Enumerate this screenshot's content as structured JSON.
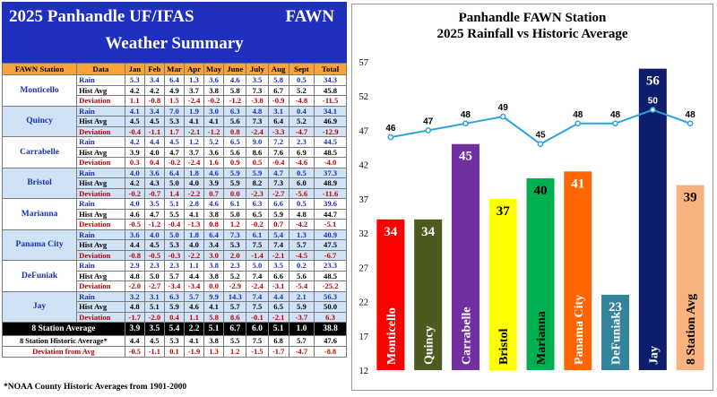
{
  "table": {
    "title_line1": "2025 Panhandle UF/IFAS",
    "title_fawn": "FAWN",
    "title_line2": "Weather Summary",
    "headers": [
      "FAWN Station",
      "Data",
      "Jan",
      "Feb",
      "Mar",
      "Apr",
      "May",
      "June",
      "July",
      "Aug",
      "Sept",
      "Total"
    ],
    "row_labels": [
      "Rain",
      "Hist Avg",
      "Deviation"
    ],
    "stations": [
      {
        "name": "Monticello",
        "rain": [
          "5.3",
          "3.4",
          "6.4",
          "1.3",
          "3.6",
          "4.6",
          "3.5",
          "5.8",
          "0.5",
          "34.3"
        ],
        "hist": [
          "4.2",
          "4.2",
          "4.9",
          "3.7",
          "3.8",
          "5.8",
          "7.3",
          "6.7",
          "5.2",
          "45.8"
        ],
        "dev": [
          "1.1",
          "-0.8",
          "1.5",
          "-2.4",
          "-0.2",
          "-1.2",
          "-3.8",
          "-0.9",
          "-4.8",
          "-11.5"
        ]
      },
      {
        "name": "Quincy",
        "rain": [
          "4.1",
          "3.4",
          "7.0",
          "1.9",
          "3.0",
          "6.3",
          "4.8",
          "3.1",
          "0.4",
          "34.1"
        ],
        "hist": [
          "4.5",
          "4.5",
          "5.3",
          "4.1",
          "4.1",
          "5.6",
          "7.3",
          "6.4",
          "5.2",
          "46.9"
        ],
        "dev": [
          "-0.4",
          "-1.1",
          "1.7",
          "-2.1",
          "-1.2",
          "0.8",
          "-2.4",
          "-3.3",
          "-4.7",
          "-12.9"
        ]
      },
      {
        "name": "Carrabelle",
        "rain": [
          "4.2",
          "4.4",
          "4.5",
          "1.2",
          "5.2",
          "6.5",
          "9.0",
          "7.2",
          "2.3",
          "44.5"
        ],
        "hist": [
          "3.9",
          "4.0",
          "4.7",
          "3.7",
          "3.6",
          "5.6",
          "8.6",
          "7.6",
          "6.9",
          "48.5"
        ],
        "dev": [
          "0.3",
          "0.4",
          "-0.2",
          "-2.4",
          "1.6",
          "0.9",
          "0.5",
          "-0.4",
          "-4.6",
          "-4.0"
        ]
      },
      {
        "name": "Bristol",
        "rain": [
          "4.0",
          "3.6",
          "6.4",
          "1.8",
          "4.6",
          "5.9",
          "5.9",
          "4.7",
          "0.5",
          "37.3"
        ],
        "hist": [
          "4.2",
          "4.3",
          "5.0",
          "4.0",
          "3.9",
          "5.9",
          "8.2",
          "7.3",
          "6.0",
          "48.9"
        ],
        "dev": [
          "-0.2",
          "-0.7",
          "1.4",
          "-2.2",
          "0.7",
          "0.0",
          "-2.3",
          "-2.7",
          "-5.6",
          "-11.6"
        ]
      },
      {
        "name": "Marianna",
        "rain": [
          "4.0",
          "3.5",
          "5.1",
          "2.8",
          "4.6",
          "6.1",
          "6.3",
          "6.6",
          "0.5",
          "39.6"
        ],
        "hist": [
          "4.6",
          "4.7",
          "5.5",
          "4.1",
          "3.8",
          "5.0",
          "6.5",
          "5.9",
          "4.8",
          "44.7"
        ],
        "dev": [
          "-0.5",
          "-1.2",
          "-0.4",
          "-1.3",
          "0.8",
          "1.2",
          "-0.2",
          "0.7",
          "-4.2",
          "-5.1"
        ]
      },
      {
        "name": "Panama City",
        "rain": [
          "3.6",
          "4.0",
          "5.0",
          "1.8",
          "6.4",
          "7.3",
          "6.1",
          "5.4",
          "1.3",
          "40.9"
        ],
        "hist": [
          "4.4",
          "4.5",
          "5.3",
          "4.0",
          "3.4",
          "5.3",
          "7.5",
          "7.4",
          "5.7",
          "47.5"
        ],
        "dev": [
          "-0.8",
          "-0.5",
          "-0.3",
          "-2.2",
          "3.0",
          "2.0",
          "-1.4",
          "-2.1",
          "-4.5",
          "-6.7"
        ]
      },
      {
        "name": "DeFuniak",
        "rain": [
          "2.9",
          "2.3",
          "2.3",
          "1.1",
          "3.8",
          "2.3",
          "5.0",
          "3.5",
          "0.2",
          "23.3"
        ],
        "hist": [
          "4.8",
          "5.0",
          "5.7",
          "4.4",
          "3.8",
          "5.2",
          "7.4",
          "6.6",
          "5.6",
          "48.5"
        ],
        "dev": [
          "-2.0",
          "-2.7",
          "-3.4",
          "-3.4",
          "0.0",
          "-2.9",
          "-2.4",
          "-3.1",
          "-5.4",
          "-25.2"
        ]
      },
      {
        "name": "Jay",
        "rain": [
          "3.2",
          "3.1",
          "6.3",
          "5.7",
          "9.9",
          "14.3",
          "7.4",
          "4.4",
          "2.1",
          "56.3"
        ],
        "hist": [
          "4.8",
          "5.1",
          "5.9",
          "4.6",
          "4.1",
          "5.7",
          "7.5",
          "6.5",
          "5.9",
          "50.0"
        ],
        "dev": [
          "-1.7",
          "-2.0",
          "0.4",
          "1.1",
          "5.8",
          "8.6",
          "-0.1",
          "-2.1",
          "-3.7",
          "6.3"
        ]
      }
    ],
    "avg8_label": "8 Station Average",
    "avg8": [
      "3.9",
      "3.5",
      "5.4",
      "2.2",
      "5.1",
      "6.7",
      "6.0",
      "5.1",
      "1.0",
      "38.8"
    ],
    "hist8_label": "8 Station Historic Average*",
    "hist8": [
      "4.4",
      "4.5",
      "5.3",
      "4.1",
      "3.8",
      "5.5",
      "7.5",
      "6.8",
      "5.7",
      "47.6"
    ],
    "dev8_label": "Deviation from Avg",
    "dev8": [
      "-0.5",
      "-1.1",
      "0.1",
      "-1.9",
      "1.3",
      "1.2",
      "-1.5",
      "-1.7",
      "-4.7",
      "-8.8"
    ],
    "footnote": "*NOAA County Historic Averages from 1901-2000"
  },
  "chart_data": {
    "type": "bar",
    "title": "Panhandle FAWN Station\n2025 Rainfall vs Historic Average",
    "title_line1": "Panhandle FAWN Station",
    "title_line2": "2025 Rainfall vs Historic Average",
    "categories": [
      "Monticello",
      "Quincy",
      "Carrabelle",
      "Bristol",
      "Marianna",
      "Panama City",
      "DeFuniak",
      "Jay",
      "8 Station Avg"
    ],
    "values": [
      34,
      34,
      45,
      37,
      40,
      41,
      23,
      56,
      39
    ],
    "value_labels": [
      "34",
      "34",
      "45",
      "37",
      "40",
      "41",
      "23",
      "56",
      "39"
    ],
    "line_series": [
      46,
      47,
      48,
      49,
      45,
      48,
      48,
      50,
      48
    ],
    "line_labels": [
      "46",
      "47",
      "48",
      "49",
      "45",
      "48",
      "48",
      "50",
      "48"
    ],
    "bar_colors": [
      "#ff0000",
      "#4b5a1e",
      "#7030a0",
      "#ffff00",
      "#00b050",
      "#ff6600",
      "#31849b",
      "#0b1d6b",
      "#f7b27e"
    ],
    "label_colors": [
      "#ffffff",
      "#ffffff",
      "#ffffff",
      "#000000",
      "#000000",
      "#ffffff",
      "#ffffff",
      "#ffffff",
      "#000000"
    ],
    "line_color": "#29a3e0",
    "ylim": [
      12,
      57
    ],
    "yticks": [
      12,
      17,
      22,
      27,
      32,
      37,
      42,
      47,
      52,
      57
    ],
    "grid": false,
    "legend": "none"
  }
}
